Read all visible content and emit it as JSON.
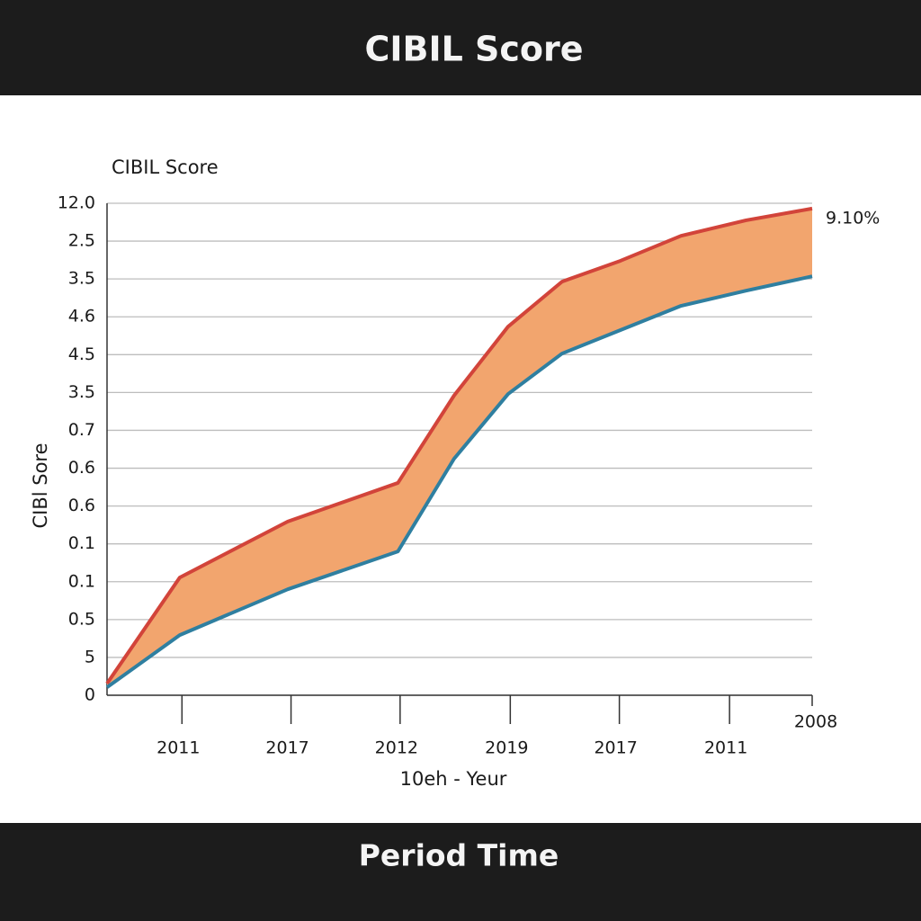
{
  "header": "CIBIL Score",
  "footer": "Period Time",
  "chart_data": {
    "type": "area",
    "title": "CIBIL Score",
    "y_label": "CIBl Sore",
    "x_label": "10eh - Yeur",
    "annotation": "9.10%",
    "x": [
      0,
      0.66,
      1.64,
      2.64,
      3.15,
      3.64,
      4.13,
      4.66,
      5.21,
      5.8,
      6.4
    ],
    "series": [
      {
        "color": "#d2443a",
        "values": [
          0.31,
          3.11,
          4.59,
          5.61,
          7.92,
          9.74,
          10.93,
          11.48,
          12.14,
          12.55,
          12.86
        ]
      },
      {
        "color": "#2f7fa0",
        "values": [
          0.21,
          1.59,
          2.8,
          3.8,
          6.25,
          7.96,
          9.03,
          9.65,
          10.29,
          10.69,
          11.07
        ]
      }
    ],
    "fill_between": true,
    "fill_color": "#f2a56e",
    "xlim": [
      0,
      6.4
    ],
    "xticks": [
      {
        "value": 0.68,
        "label": "2011"
      },
      {
        "value": 1.67,
        "label": "2017"
      },
      {
        "value": 2.66,
        "label": "2012"
      },
      {
        "value": 3.66,
        "label": "2019"
      },
      {
        "value": 4.65,
        "label": "2017"
      },
      {
        "value": 5.65,
        "label": "2011"
      },
      {
        "value": 6.4,
        "label": "2008"
      }
    ],
    "ylim": [
      0,
      13
    ],
    "yticks": [
      0,
      {
        "value": 1,
        "label": "5"
      },
      {
        "value": 2,
        "label": "0.5"
      },
      {
        "value": 3,
        "label": "0.1"
      },
      {
        "value": 4,
        "label": "0.1"
      },
      {
        "value": 5,
        "label": "0.6"
      },
      {
        "value": 6,
        "label": "0.6"
      },
      {
        "value": 7,
        "label": "0.7"
      },
      {
        "value": 8,
        "label": "3.5"
      },
      {
        "value": 9,
        "label": "4.5"
      },
      {
        "value": 10,
        "label": "4.6"
      },
      {
        "value": 11,
        "label": "3.5"
      },
      {
        "value": 12,
        "label": "2.5"
      },
      {
        "value": 13,
        "label": "12.0"
      }
    ],
    "grid": true
  }
}
